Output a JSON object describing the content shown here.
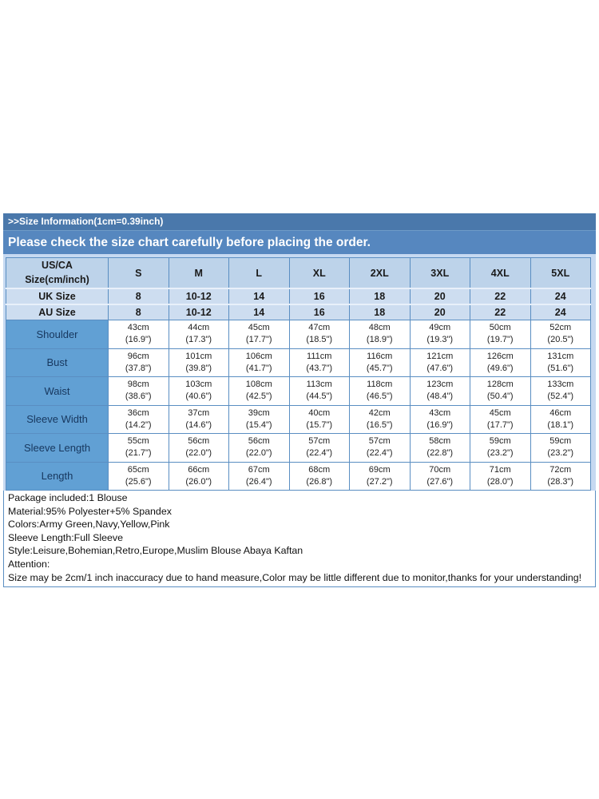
{
  "header": {
    "title_bar": ">>Size Information(1cm=0.39inch)",
    "subtitle_bar": "Please check the size chart carefully before placing the order."
  },
  "size_table": {
    "corner_label_line1": "US/CA",
    "corner_label_line2": "Size(cm/inch)",
    "size_columns": [
      "S",
      "M",
      "L",
      "XL",
      "2XL",
      "3XL",
      "4XL",
      "5XL"
    ],
    "conversion_rows": [
      {
        "label": "UK Size",
        "values": [
          "8",
          "10-12",
          "14",
          "16",
          "18",
          "20",
          "22",
          "24"
        ]
      },
      {
        "label": "AU Size",
        "values": [
          "8",
          "10-12",
          "14",
          "16",
          "18",
          "20",
          "22",
          "24"
        ]
      }
    ],
    "measurement_rows": [
      {
        "label": "Shoulder",
        "cells": [
          {
            "cm": "43cm",
            "inch": "(16.9\")"
          },
          {
            "cm": "44cm",
            "inch": "(17.3\")"
          },
          {
            "cm": "45cm",
            "inch": "(17.7\")"
          },
          {
            "cm": "47cm",
            "inch": "(18.5\")"
          },
          {
            "cm": "48cm",
            "inch": "(18.9\")"
          },
          {
            "cm": "49cm",
            "inch": "(19.3\")"
          },
          {
            "cm": "50cm",
            "inch": "(19.7\")"
          },
          {
            "cm": "52cm",
            "inch": "(20.5\")"
          }
        ]
      },
      {
        "label": "Bust",
        "cells": [
          {
            "cm": "96cm",
            "inch": "(37.8\")"
          },
          {
            "cm": "101cm",
            "inch": "(39.8\")"
          },
          {
            "cm": "106cm",
            "inch": "(41.7\")"
          },
          {
            "cm": "111cm",
            "inch": "(43.7\")"
          },
          {
            "cm": "116cm",
            "inch": "(45.7\")"
          },
          {
            "cm": "121cm",
            "inch": "(47.6\")"
          },
          {
            "cm": "126cm",
            "inch": "(49.6\")"
          },
          {
            "cm": "131cm",
            "inch": "(51.6\")"
          }
        ]
      },
      {
        "label": "Waist",
        "cells": [
          {
            "cm": "98cm",
            "inch": "(38.6\")"
          },
          {
            "cm": "103cm",
            "inch": "(40.6\")"
          },
          {
            "cm": "108cm",
            "inch": "(42.5\")"
          },
          {
            "cm": "113cm",
            "inch": "(44.5\")"
          },
          {
            "cm": "118cm",
            "inch": "(46.5\")"
          },
          {
            "cm": "123cm",
            "inch": "(48.4\")"
          },
          {
            "cm": "128cm",
            "inch": "(50.4\")"
          },
          {
            "cm": "133cm",
            "inch": "(52.4\")"
          }
        ]
      },
      {
        "label": "Sleeve Width",
        "cells": [
          {
            "cm": "36cm",
            "inch": "(14.2\")"
          },
          {
            "cm": "37cm",
            "inch": "(14.6\")"
          },
          {
            "cm": "39cm",
            "inch": "(15.4\")"
          },
          {
            "cm": "40cm",
            "inch": "(15.7\")"
          },
          {
            "cm": "42cm",
            "inch": "(16.5\")"
          },
          {
            "cm": "43cm",
            "inch": "(16.9\")"
          },
          {
            "cm": "45cm",
            "inch": "(17.7\")"
          },
          {
            "cm": "46cm",
            "inch": "(18.1\")"
          }
        ]
      },
      {
        "label": "Sleeve Length",
        "cells": [
          {
            "cm": "55cm",
            "inch": "(21.7\")"
          },
          {
            "cm": "56cm",
            "inch": "(22.0\")"
          },
          {
            "cm": "56cm",
            "inch": "(22.0\")"
          },
          {
            "cm": "57cm",
            "inch": "(22.4\")"
          },
          {
            "cm": "57cm",
            "inch": "(22.4\")"
          },
          {
            "cm": "58cm",
            "inch": "(22.8\")"
          },
          {
            "cm": "59cm",
            "inch": "(23.2\")"
          },
          {
            "cm": "59cm",
            "inch": "(23.2\")"
          }
        ]
      },
      {
        "label": "Length",
        "cells": [
          {
            "cm": "65cm",
            "inch": "(25.6\")"
          },
          {
            "cm": "66cm",
            "inch": "(26.0\")"
          },
          {
            "cm": "67cm",
            "inch": "(26.4\")"
          },
          {
            "cm": "68cm",
            "inch": "(26.8\")"
          },
          {
            "cm": "69cm",
            "inch": "(27.2\")"
          },
          {
            "cm": "70cm",
            "inch": "(27.6\")"
          },
          {
            "cm": "71cm",
            "inch": "(28.0\")"
          },
          {
            "cm": "72cm",
            "inch": "(28.3\")"
          }
        ]
      }
    ]
  },
  "notes": {
    "lines": [
      "Package included:1 Blouse",
      "Material:95% Polyester+5% Spandex",
      "Colors:Army Green,Navy,Yellow,Pink",
      "Sleeve Length:Full Sleeve",
      "Style:Leisure,Bohemian,Retro,Europe,Muslim Blouse Abaya Kaftan",
      "Attention:",
      "Size may be 2cm/1 inch inaccuracy due to hand measure,Color may be little different due to monitor,thanks for your understanding!"
    ]
  },
  "colors": {
    "title_bar_bg": "#4a78ab",
    "subtitle_bar_bg": "#5687bf",
    "header_row_bg": "#bdd3ea",
    "conversion_row_bg": "#cdddf0",
    "label_column_bg": "#61a0d4",
    "card_bg": "#c6d9f1",
    "grid_border": "#5a8ec2"
  }
}
